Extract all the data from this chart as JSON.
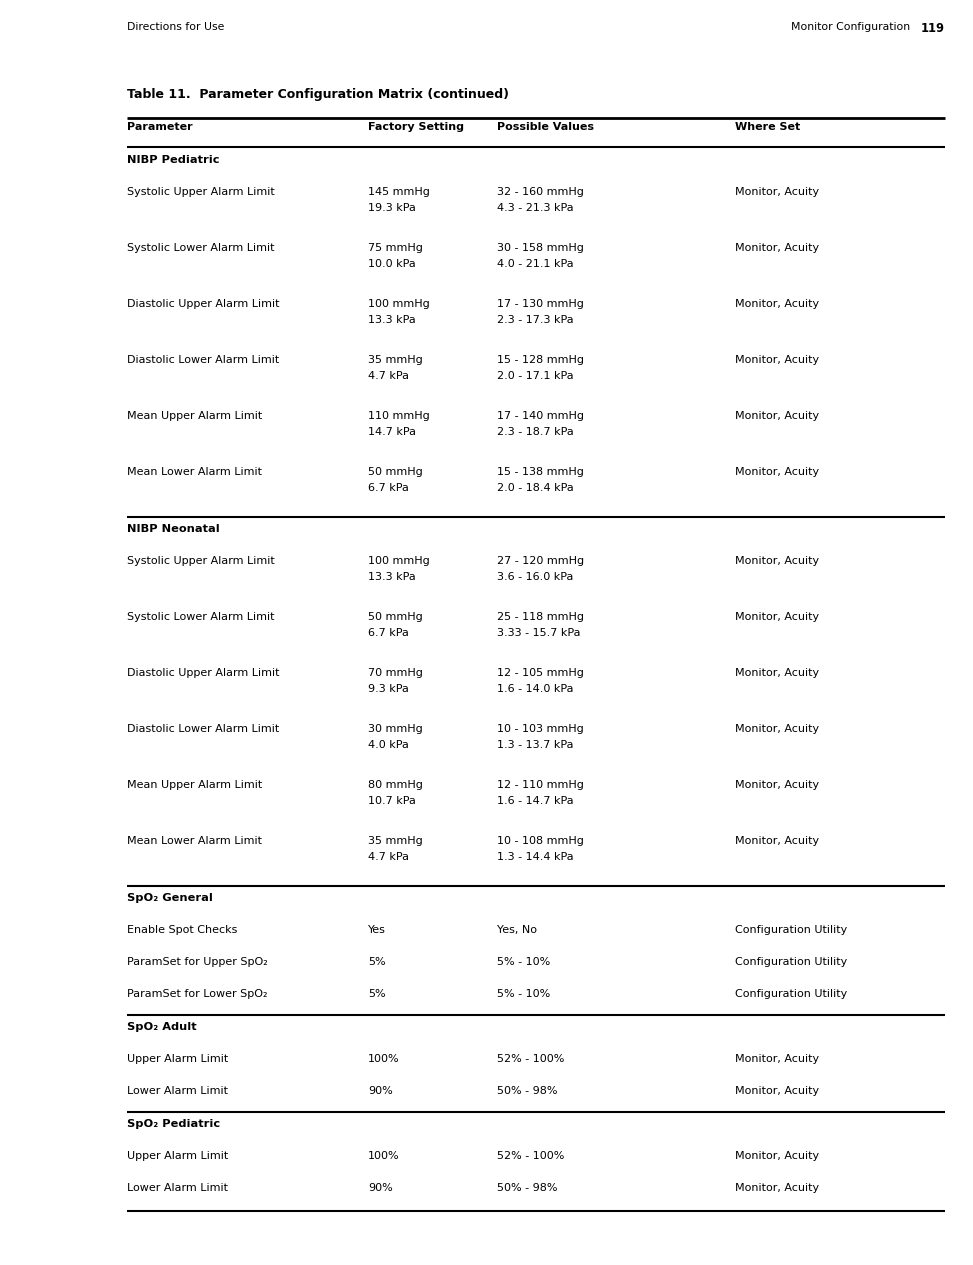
{
  "page_header_left": "Directions for Use",
  "page_header_right": "Monitor Configuration",
  "page_number": "119",
  "table_title": "Table 11.  Parameter Configuration Matrix (continued)",
  "col_headers": [
    "Parameter",
    "Factory Setting",
    "Possible Values",
    "Where Set"
  ],
  "sections": [
    {
      "type": "section_header",
      "label": "NIBP Pediatric",
      "thick_line_above": false
    },
    {
      "type": "row",
      "param": "Systolic Upper Alarm Limit",
      "factory": [
        "145 mmHg",
        "19.3 kPa"
      ],
      "possible": [
        "32 - 160 mmHg",
        "4.3 - 21.3 kPa"
      ],
      "where": "Monitor, Acuity"
    },
    {
      "type": "row",
      "param": "Systolic Lower Alarm Limit",
      "factory": [
        "75 mmHg",
        "10.0 kPa"
      ],
      "possible": [
        "30 - 158 mmHg",
        "4.0 - 21.1 kPa"
      ],
      "where": "Monitor, Acuity"
    },
    {
      "type": "row",
      "param": "Diastolic Upper Alarm Limit",
      "factory": [
        "100 mmHg",
        "13.3 kPa"
      ],
      "possible": [
        "17 - 130 mmHg",
        "2.3 - 17.3 kPa"
      ],
      "where": "Monitor, Acuity"
    },
    {
      "type": "row",
      "param": "Diastolic Lower Alarm Limit",
      "factory": [
        "35 mmHg",
        "4.7 kPa"
      ],
      "possible": [
        "15 - 128 mmHg",
        "2.0 - 17.1 kPa"
      ],
      "where": "Monitor, Acuity"
    },
    {
      "type": "row",
      "param": "Mean Upper Alarm Limit",
      "factory": [
        "110 mmHg",
        "14.7 kPa"
      ],
      "possible": [
        "17 - 140 mmHg",
        "2.3 - 18.7 kPa"
      ],
      "where": "Monitor, Acuity"
    },
    {
      "type": "row",
      "param": "Mean Lower Alarm Limit",
      "factory": [
        "50 mmHg",
        "6.7 kPa"
      ],
      "possible": [
        "15 - 138 mmHg",
        "2.0 - 18.4 kPa"
      ],
      "where": "Monitor, Acuity"
    },
    {
      "type": "section_header",
      "label": "NIBP Neonatal",
      "thick_line_above": true
    },
    {
      "type": "row",
      "param": "Systolic Upper Alarm Limit",
      "factory": [
        "100 mmHg",
        "13.3 kPa"
      ],
      "possible": [
        "27 - 120 mmHg",
        "3.6 - 16.0 kPa"
      ],
      "where": "Monitor, Acuity"
    },
    {
      "type": "row",
      "param": "Systolic Lower Alarm Limit",
      "factory": [
        "50 mmHg",
        "6.7 kPa"
      ],
      "possible": [
        "25 - 118 mmHg",
        "3.33 - 15.7 kPa"
      ],
      "where": "Monitor, Acuity"
    },
    {
      "type": "row",
      "param": "Diastolic Upper Alarm Limit",
      "factory": [
        "70 mmHg",
        "9.3 kPa"
      ],
      "possible": [
        "12 - 105 mmHg",
        "1.6 - 14.0 kPa"
      ],
      "where": "Monitor, Acuity"
    },
    {
      "type": "row",
      "param": "Diastolic Lower Alarm Limit",
      "factory": [
        "30 mmHg",
        "4.0 kPa"
      ],
      "possible": [
        "10 - 103 mmHg",
        "1.3 - 13.7 kPa"
      ],
      "where": "Monitor, Acuity"
    },
    {
      "type": "row",
      "param": "Mean Upper Alarm Limit",
      "factory": [
        "80 mmHg",
        "10.7 kPa"
      ],
      "possible": [
        "12 - 110 mmHg",
        "1.6 - 14.7 kPa"
      ],
      "where": "Monitor, Acuity"
    },
    {
      "type": "row",
      "param": "Mean Lower Alarm Limit",
      "factory": [
        "35 mmHg",
        "4.7 kPa"
      ],
      "possible": [
        "10 - 108 mmHg",
        "1.3 - 14.4 kPa"
      ],
      "where": "Monitor, Acuity"
    },
    {
      "type": "section_header",
      "label": "SpO₂ General",
      "thick_line_above": true
    },
    {
      "type": "row_single",
      "param": "Enable Spot Checks",
      "factory": "Yes",
      "possible": "Yes, No",
      "where": "Configuration Utility"
    },
    {
      "type": "row_single",
      "param": "ParamSet for Upper SpO₂",
      "factory": "5%",
      "possible": "5% - 10%",
      "where": "Configuration Utility"
    },
    {
      "type": "row_single",
      "param": "ParamSet for Lower SpO₂",
      "factory": "5%",
      "possible": "5% - 10%",
      "where": "Configuration Utility"
    },
    {
      "type": "section_header",
      "label": "SpO₂ Adult",
      "thick_line_above": true
    },
    {
      "type": "row_single",
      "param": "Upper Alarm Limit",
      "factory": "100%",
      "possible": "52% - 100%",
      "where": "Monitor, Acuity"
    },
    {
      "type": "row_single",
      "param": "Lower Alarm Limit",
      "factory": "90%",
      "possible": "50% - 98%",
      "where": "Monitor, Acuity"
    },
    {
      "type": "section_header",
      "label": "SpO₂ Pediatric",
      "thick_line_above": true
    },
    {
      "type": "row_single",
      "param": "Upper Alarm Limit",
      "factory": "100%",
      "possible": "52% - 100%",
      "where": "Monitor, Acuity"
    },
    {
      "type": "row_single",
      "param": "Lower Alarm Limit",
      "factory": "90%",
      "possible": "50% - 98%",
      "where": "Monitor, Acuity"
    }
  ],
  "bg_color": "#ffffff",
  "text_color": "#000000"
}
